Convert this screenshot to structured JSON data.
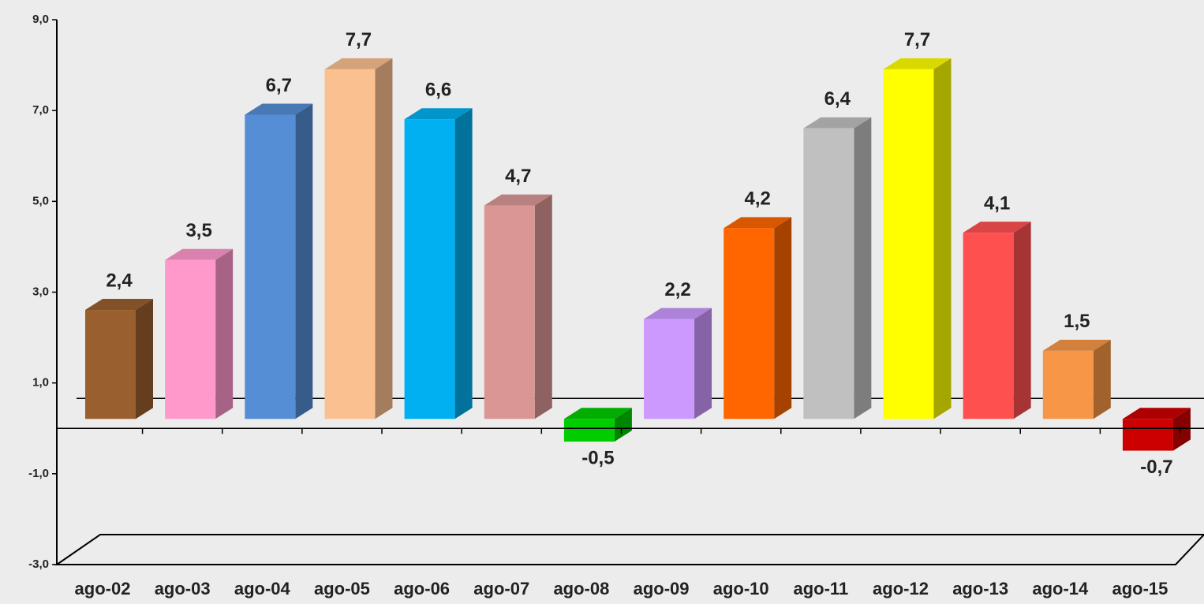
{
  "chart_data": {
    "type": "bar3d",
    "categories": [
      "ago-02",
      "ago-03",
      "ago-04",
      "ago-05",
      "ago-06",
      "ago-07",
      "ago-08",
      "ago-09",
      "ago-10",
      "ago-11",
      "ago-12",
      "ago-13",
      "ago-14",
      "ago-15"
    ],
    "values": [
      2.4,
      3.5,
      6.7,
      7.7,
      6.6,
      4.7,
      -0.5,
      2.2,
      4.2,
      6.4,
      7.7,
      4.1,
      1.5,
      -0.7
    ],
    "value_labels": [
      "2,4",
      "3,5",
      "6,7",
      "7,7",
      "6,6",
      "4,7",
      "-0,5",
      "2,2",
      "4,2",
      "6,4",
      "7,7",
      "4,1",
      "1,5",
      "-0,7"
    ],
    "colors": [
      "#9a5f2e",
      "#ff99cc",
      "#558ed5",
      "#fac090",
      "#00b0f0",
      "#d99694",
      "#00cc00",
      "#cc99ff",
      "#ff6600",
      "#c0c0c0",
      "#ffff00",
      "#ff5050",
      "#f79646",
      "#cc0000"
    ],
    "ylim": [
      -3,
      9
    ],
    "yticks": [
      {
        "value": 9,
        "label": "9,0"
      },
      {
        "value": 7,
        "label": "7,0"
      },
      {
        "value": 5,
        "label": "5,0"
      },
      {
        "value": 3,
        "label": "3,0"
      },
      {
        "value": 1,
        "label": "1,0"
      },
      {
        "value": -1,
        "label": "-1,0"
      },
      {
        "value": -3,
        "label": "-3,0"
      }
    ]
  }
}
